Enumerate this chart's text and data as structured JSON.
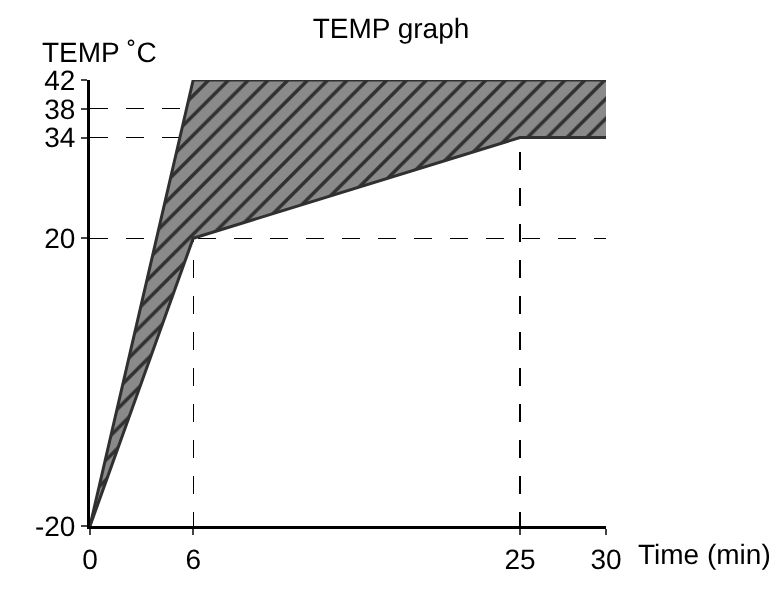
{
  "chart_data": {
    "type": "line",
    "title": "TEMP graph",
    "ylabel": "TEMP ˚C",
    "xlabel": "Time (min)",
    "series": [
      {
        "color": "#303030",
        "x": [
          0,
          6,
          25,
          30
        ],
        "values": [
          -20,
          42,
          42,
          42
        ],
        "lower": [
          -20,
          20,
          34,
          34
        ],
        "upper": [
          -20,
          42,
          42,
          42
        ]
      },
      {
        "color": "#303030",
        "x": [
          0,
          6,
          25,
          30
        ],
        "values": [
          -20,
          20,
          34,
          34
        ]
      }
    ],
    "xlim": [
      0,
      30
    ],
    "xticks": [
      0,
      6,
      25,
      30
    ],
    "ylim": [
      -20,
      42
    ],
    "yticks": [
      -20,
      20,
      34,
      38,
      42
    ],
    "grid": true
  }
}
